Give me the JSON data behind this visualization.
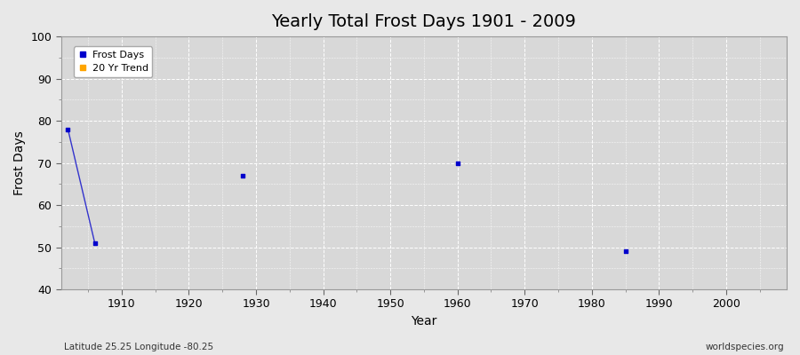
{
  "title": "Yearly Total Frost Days 1901 - 2009",
  "xlabel": "Year",
  "ylabel": "Frost Days",
  "subtitle_left": "Latitude 25.25 Longitude -80.25",
  "subtitle_right": "worldspecies.org",
  "xlim": [
    1901,
    2009
  ],
  "ylim": [
    40,
    100
  ],
  "yticks": [
    40,
    50,
    60,
    70,
    80,
    90,
    100
  ],
  "xticks": [
    1910,
    1920,
    1930,
    1940,
    1950,
    1960,
    1970,
    1980,
    1990,
    2000
  ],
  "line_x": [
    1902,
    1906
  ],
  "line_y": [
    78,
    51
  ],
  "scatter_years": [
    1902,
    1906,
    1928,
    1960,
    1985
  ],
  "scatter_values": [
    78,
    51,
    67,
    70,
    49
  ],
  "dot_color": "#0000cc",
  "line_color": "#3333cc",
  "trend_color": "#ffa500",
  "bg_color": "#e8e8e8",
  "plot_bg": "#d8d8d8",
  "grid_color": "#ffffff",
  "legend_labels": [
    "Frost Days",
    "20 Yr Trend"
  ],
  "legend_colors": [
    "#0000cc",
    "#ffa500"
  ],
  "title_fontsize": 14,
  "axis_label_fontsize": 10,
  "tick_fontsize": 9,
  "legend_fontsize": 8
}
